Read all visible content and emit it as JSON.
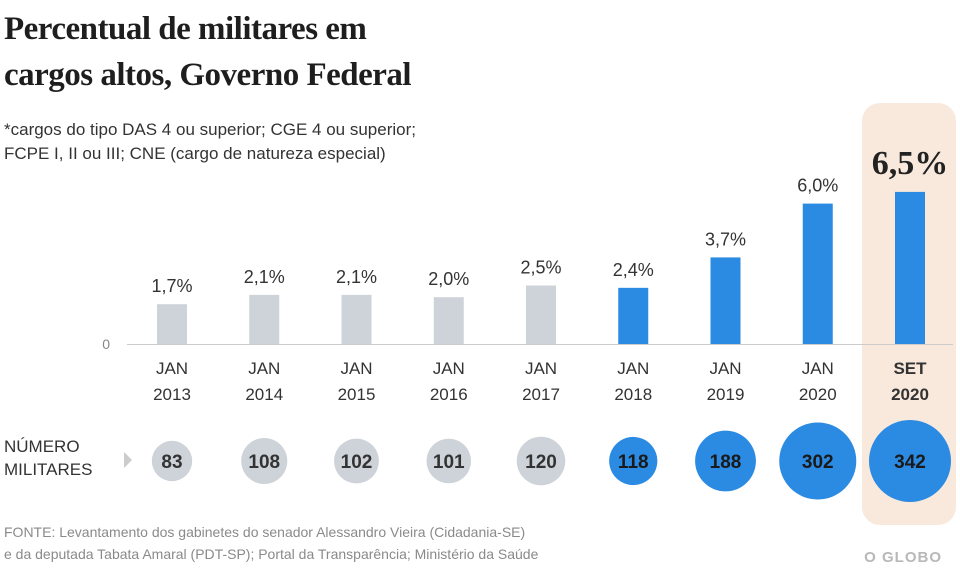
{
  "title_line1": "Percentual de militares em",
  "title_line2": "cargos altos, Governo Federal",
  "note_line1": "*cargos do tipo DAS 4 ou superior; CGE 4 ou superior;",
  "note_line2": "FCPE I, II ou III; CNE (cargo de natureza especial)",
  "row_label_line1": "NÚMERO",
  "row_label_line2": "MILITARES",
  "source_line1": "FONTE: Levantamento dos gabinetes do senador Alessandro Vieira (Cidadania-SE)",
  "source_line2": "e da deputada Tabata Amaral (PDT-SP); Portal da Transparência; Ministério da Saúde",
  "brand": "O GLOBO",
  "colors": {
    "grey": "#cdd3d8",
    "blue": "#2b8ae2",
    "highlight": "#f8e9dc"
  },
  "chart_data": {
    "type": "bar",
    "y_zero_label": "0",
    "ylim": [
      0,
      7
    ],
    "categories": [
      {
        "month": "JAN",
        "year": "2013"
      },
      {
        "month": "JAN",
        "year": "2014"
      },
      {
        "month": "JAN",
        "year": "2015"
      },
      {
        "month": "JAN",
        "year": "2016"
      },
      {
        "month": "JAN",
        "year": "2017"
      },
      {
        "month": "JAN",
        "year": "2018"
      },
      {
        "month": "JAN",
        "year": "2019"
      },
      {
        "month": "JAN",
        "year": "2020"
      },
      {
        "month": "SET",
        "year": "2020"
      }
    ],
    "values": [
      1.7,
      2.1,
      2.1,
      2.0,
      2.5,
      2.4,
      3.7,
      6.0,
      6.5
    ],
    "value_labels": [
      "1,7%",
      "2,1%",
      "2,1%",
      "2,0%",
      "2,5%",
      "2,4%",
      "3,7%",
      "6,0%",
      "6,5%"
    ],
    "bar_colors": [
      "grey",
      "grey",
      "grey",
      "grey",
      "grey",
      "blue",
      "blue",
      "blue",
      "blue"
    ],
    "highlighted_index": 8,
    "military_counts": [
      83,
      108,
      102,
      101,
      120,
      118,
      188,
      302,
      342
    ]
  }
}
